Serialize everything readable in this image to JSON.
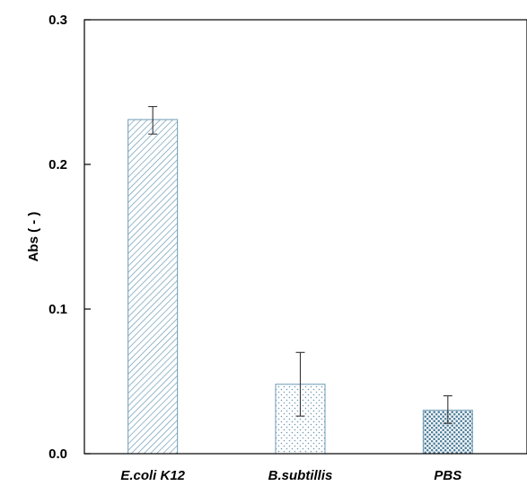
{
  "chart_data": {
    "type": "bar",
    "categories": [
      "E.coli K12",
      "B.subtillis",
      "PBS"
    ],
    "values": [
      0.231,
      0.048,
      0.03
    ],
    "errors": [
      [
        0.221,
        0.24
      ],
      [
        0.026,
        0.07
      ],
      [
        0.021,
        0.04
      ]
    ],
    "patterns": [
      "diagonal-hatch",
      "sparse-dots",
      "dense-dots"
    ],
    "bar_color": "#6e9bb5",
    "ylabel": "Abs ( - )",
    "ylim": [
      0,
      0.3
    ],
    "yticks": [
      "0.0",
      "0.1",
      "0.2",
      "0.3"
    ],
    "grid": false,
    "legend": "none"
  }
}
